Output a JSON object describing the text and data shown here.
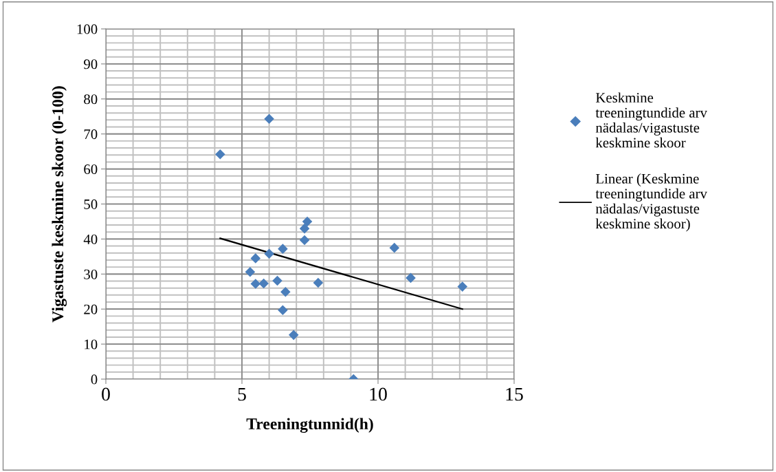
{
  "chart_data": {
    "type": "scatter",
    "xlabel": "Treeningtunnid(h)",
    "ylabel": "Vigastuste keskmine skoor (0-100)",
    "xlim": [
      0,
      15
    ],
    "xticks": [
      0,
      5,
      10,
      15
    ],
    "ylim": [
      0,
      100
    ],
    "yticks": [
      0,
      10,
      20,
      30,
      40,
      50,
      60,
      70,
      80,
      90,
      100
    ],
    "grid": true,
    "legend": "right",
    "series": [
      {
        "name": "Keskmine treeningtundide arv nädalas/vigastuste keskmine skoor",
        "color": "#4a7ebb",
        "marker": "diamond",
        "x": [
          4.2,
          6.0,
          7.4,
          7.3,
          7.3,
          6.5,
          6.0,
          5.5,
          5.3,
          5.5,
          5.8,
          6.3,
          6.6,
          6.5,
          6.9,
          7.8,
          9.1,
          10.6,
          11.2,
          13.1
        ],
        "values": [
          64.2,
          74.3,
          45,
          43,
          39.7,
          37.2,
          35.8,
          34.5,
          30.6,
          27.2,
          27.3,
          28.1,
          24.9,
          19.7,
          12.6,
          27.5,
          0,
          37.5,
          28.9,
          26.4
        ]
      },
      {
        "name": "Linear (Keskmine treeningtundide arv nädalas/vigastuste keskmine skoor)",
        "color": "#000000",
        "type": "line",
        "x": [
          4.2,
          13.1
        ],
        "values": [
          40.2,
          20.0
        ]
      }
    ]
  }
}
